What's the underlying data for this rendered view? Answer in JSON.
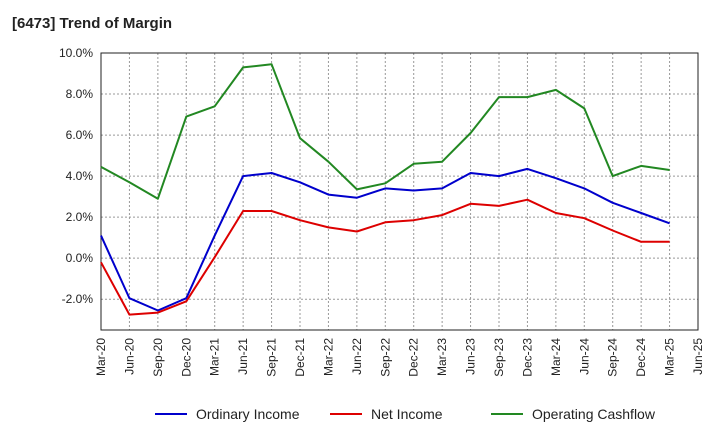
{
  "chart_data": {
    "type": "line",
    "title": "[6473]  Trend of Margin",
    "xlabel": "",
    "ylabel": "",
    "x": [
      "Mar-20",
      "Jun-20",
      "Sep-20",
      "Dec-20",
      "Mar-21",
      "Jun-21",
      "Sep-21",
      "Dec-21",
      "Mar-22",
      "Jun-22",
      "Sep-22",
      "Dec-22",
      "Mar-23",
      "Jun-23",
      "Sep-23",
      "Dec-23",
      "Mar-24",
      "Jun-24",
      "Sep-24",
      "Dec-24",
      "Mar-25",
      "Jun-25"
    ],
    "ylim": [
      -3.5,
      10.0
    ],
    "yticks": [
      -2.0,
      0.0,
      2.0,
      4.0,
      6.0,
      8.0,
      10.0
    ],
    "ytick_labels": [
      "-2.0%",
      "0.0%",
      "2.0%",
      "4.0%",
      "6.0%",
      "8.0%",
      "10.0%"
    ],
    "grid": true,
    "legend_position": "bottom",
    "series": [
      {
        "name": "Ordinary Income",
        "color": "#0000cc",
        "values": [
          1.1,
          -1.95,
          -2.55,
          -1.95,
          1.1,
          4.0,
          4.15,
          3.7,
          3.1,
          2.95,
          3.4,
          3.3,
          3.4,
          4.15,
          4.0,
          4.35,
          3.9,
          3.4,
          2.7,
          2.2,
          1.7,
          null
        ]
      },
      {
        "name": "Net Income",
        "color": "#dd0000",
        "values": [
          -0.2,
          -2.75,
          -2.65,
          -2.1,
          0.05,
          2.3,
          2.3,
          1.85,
          1.5,
          1.3,
          1.75,
          1.85,
          2.1,
          2.65,
          2.55,
          2.85,
          2.2,
          1.95,
          1.35,
          0.8,
          0.8,
          null
        ]
      },
      {
        "name": "Operating Cashflow",
        "color": "#228822",
        "values": [
          4.45,
          3.7,
          2.9,
          6.9,
          7.4,
          9.3,
          9.45,
          5.85,
          4.7,
          3.35,
          3.65,
          4.6,
          4.7,
          6.1,
          7.85,
          7.85,
          8.2,
          7.3,
          4.0,
          4.5,
          4.3,
          null
        ]
      }
    ]
  }
}
